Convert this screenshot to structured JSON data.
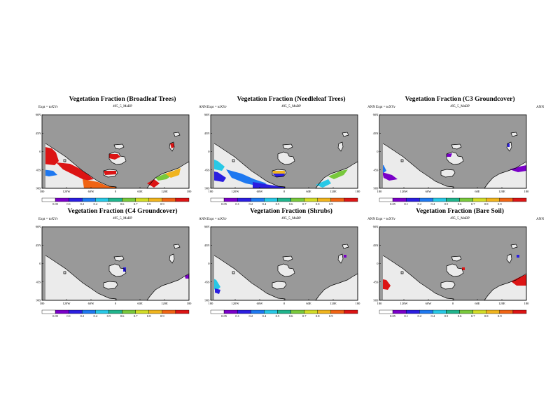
{
  "figure": {
    "panels": [
      {
        "title": "Vegetation Fraction (Broadleaf Trees)",
        "subtitle": "495_5_MaBP",
        "left_label": "Expt = toXYv",
        "right_label": "ANN",
        "field": "broadleaf"
      },
      {
        "title": "Vegetation Fraction (Needleleaf Trees)",
        "subtitle": "495_5_MaBP",
        "left_label": "Expt = toXYv",
        "right_label": "ANN",
        "field": "needleleaf"
      },
      {
        "title": "Vegetation Fraction (C3 Groundcover)",
        "subtitle": "495_5_MaBP",
        "left_label": "Expt = toXYv",
        "right_label": "ANN",
        "field": "c3"
      },
      {
        "title": "Vegetation Fraction (C4 Groundcover)",
        "subtitle": "495_5_MaBP",
        "left_label": "Expt = toXYv",
        "right_label": "ANN",
        "field": "c4"
      },
      {
        "title": "Vegetation Fraction (Shrubs)",
        "subtitle": "495_5_MaBP",
        "left_label": "Expt = toXYv",
        "right_label": "ANN",
        "field": "shrubs"
      },
      {
        "title": "Vegetation Fraction (Bare Soil)",
        "subtitle": "495_5_MaBP",
        "left_label": "Expt = toXYv",
        "right_label": "ANN",
        "field": "bare"
      }
    ],
    "lat_ticks": [
      "90N",
      "45N",
      "0",
      "45S",
      "90S"
    ],
    "lon_ticks": [
      "180",
      "120W",
      "60W",
      "0",
      "60E",
      "120E",
      "180"
    ],
    "colorbar": {
      "labels": [
        "0.05",
        "0.1",
        "0.2",
        "0.4",
        "0.5",
        "0.6",
        "0.7",
        "0.8",
        "0.9"
      ],
      "colors": [
        "#ffffff",
        "#7a00c8",
        "#2b1ee0",
        "#1e78f0",
        "#28c8e6",
        "#20b48c",
        "#78c83c",
        "#d2dc28",
        "#f0b41e",
        "#f06414",
        "#dc1414"
      ]
    },
    "colors": {
      "ocean": "#999999",
      "land_low": "#ebebeb",
      "high": "#ee1111"
    }
  }
}
